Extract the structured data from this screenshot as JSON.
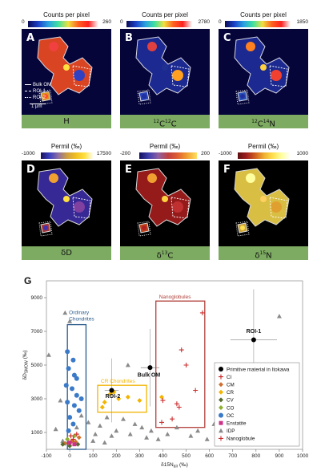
{
  "colors": {
    "panel_label_bg": "#7dab62",
    "heat_low": "#0a0a6e",
    "heat_high": "#ffe04a",
    "nanoglobule_box": "#b0403a",
    "ordinary_box": "#2a5a8a",
    "cr_box": "#f3b400"
  },
  "panels": [
    {
      "letter": "A",
      "label": "H",
      "cbar_title": "Counts per pixel",
      "min": "0",
      "max": "260",
      "scale_bar": "1 μm",
      "legend": [
        "Bulk OM",
        "ROI-1",
        "ROI-2"
      ]
    },
    {
      "letter": "B",
      "label": "12C12C",
      "label_sup": "12",
      "label_main": "C",
      "label_sup2": "12",
      "label_main2": "C",
      "cbar_title": "Counts per pixel",
      "min": "0",
      "max": "2780"
    },
    {
      "letter": "C",
      "label": "12C14N",
      "label_sup": "12",
      "label_main": "C",
      "label_sup2": "14",
      "label_main2": "N",
      "cbar_title": "Counts per pixel",
      "min": "0",
      "max": "1850"
    },
    {
      "letter": "D",
      "label": "δD",
      "cbar_title": "Permil (‰)",
      "min": "-1000",
      "max": "17500"
    },
    {
      "letter": "E",
      "label": "δ13C",
      "label_pre": "δ",
      "label_sup": "13",
      "label_main": "C",
      "cbar_title": "Permil (‰)",
      "min": "-200",
      "max": "200"
    },
    {
      "letter": "F",
      "label": "δ15N",
      "label_pre": "δ",
      "label_sup": "15",
      "label_main": "N",
      "cbar_title": "Permil (‰)",
      "min": "-1000",
      "max": "1000"
    }
  ],
  "chart_data": {
    "type": "scatter",
    "panel_letter": "G",
    "xlabel": "δ15N",
    "xlabel_sub": "air",
    "xlabel_unit": "(‰)",
    "ylabel": "δD",
    "ylabel_sub": "SMOW",
    "ylabel_unit": "(‰)",
    "xlim": [
      -100,
      1000
    ],
    "ylim": [
      0,
      10000
    ],
    "xticks": [
      "-100",
      "0",
      "100",
      "200",
      "300",
      "400",
      "500",
      "600",
      "700",
      "800",
      "900",
      "1000"
    ],
    "yticks": [
      "1000",
      "3000",
      "5000",
      "7000",
      "9000"
    ],
    "grid": false,
    "legend_position": "right",
    "boxes": [
      {
        "name": "Ordinary Chondrites",
        "x": [
          -10,
          70
        ],
        "y": [
          0,
          7400
        ],
        "color": "#2a5a8a"
      },
      {
        "name": "CR Chondrites",
        "x": [
          120,
          330
        ],
        "y": [
          2200,
          3800
        ],
        "color": "#f3b400"
      },
      {
        "name": "Nanoglobules",
        "x": [
          370,
          580
        ],
        "y": [
          1300,
          8800
        ],
        "color": "#b0403a"
      }
    ],
    "labels": [
      {
        "text": "ROI-1",
        "x": 790,
        "y": 6900
      },
      {
        "text": "ROI-2",
        "x": 185,
        "y": 3050
      },
      {
        "text": "Bulk OM",
        "x": 340,
        "y": 4300
      }
    ],
    "series": [
      {
        "name": "Primitive material in Itokawa",
        "marker": "circle",
        "color": "#000000",
        "points": [
          [
            790,
            6500
          ],
          [
            180,
            3500
          ],
          [
            345,
            4850
          ]
        ],
        "xerr": [
          100,
          30,
          40
        ],
        "yerr": [
          3000,
          1900,
          2300
        ]
      },
      {
        "name": "CI",
        "marker": "plus",
        "color": "#cc2020",
        "points": [
          [
            5,
            800
          ],
          [
            15,
            600
          ],
          [
            30,
            900
          ]
        ]
      },
      {
        "name": "CM",
        "marker": "diamond",
        "color": "#d07030",
        "points": [
          [
            -20,
            350
          ],
          [
            10,
            500
          ],
          [
            40,
            700
          ],
          [
            25,
            450
          ]
        ]
      },
      {
        "name": "CR",
        "marker": "diamond",
        "color": "#f3b400",
        "points": [
          [
            150,
            2800
          ],
          [
            175,
            3300
          ],
          [
            210,
            3000
          ],
          [
            250,
            3100
          ],
          [
            140,
            2500
          ],
          [
            300,
            2900
          ],
          [
            395,
            3100
          ],
          [
            190,
            3400
          ]
        ]
      },
      {
        "name": "CV",
        "marker": "diamond",
        "color": "#556b2f",
        "points": [
          [
            -30,
            300
          ],
          [
            0,
            200
          ],
          [
            35,
            300
          ]
        ]
      },
      {
        "name": "CO",
        "marker": "diamond",
        "color": "#8cb030",
        "points": [
          [
            -10,
            600
          ],
          [
            20,
            800
          ]
        ]
      },
      {
        "name": "OC",
        "marker": "circle",
        "color": "#3a7ac8",
        "points": [
          [
            -10,
            5800
          ],
          [
            15,
            5300
          ],
          [
            -5,
            4800
          ],
          [
            20,
            4400
          ],
          [
            -15,
            3800
          ],
          [
            10,
            3600
          ],
          [
            30,
            3200
          ],
          [
            -10,
            2800
          ],
          [
            20,
            2600
          ],
          [
            40,
            2300
          ],
          [
            0,
            1900
          ],
          [
            15,
            1500
          ],
          [
            -5,
            1100
          ],
          [
            30,
            4200
          ],
          [
            50,
            3000
          ]
        ]
      },
      {
        "name": "Enstatite",
        "marker": "square",
        "color": "#cc3388",
        "points": [
          [
            0,
            400
          ],
          [
            20,
            300
          ]
        ]
      },
      {
        "name": "IDP",
        "marker": "triangle",
        "color": "#8a8a8a",
        "points": [
          [
            -90,
            5600
          ],
          [
            -20,
            8100
          ],
          [
            -40,
            2900
          ],
          [
            -60,
            1200
          ],
          [
            0,
            7600
          ],
          [
            50,
            2000
          ],
          [
            80,
            1600
          ],
          [
            110,
            900
          ],
          [
            130,
            1400
          ],
          [
            160,
            1900
          ],
          [
            180,
            800
          ],
          [
            200,
            1100
          ],
          [
            230,
            1800
          ],
          [
            260,
            900
          ],
          [
            280,
            1500
          ],
          [
            310,
            1300
          ],
          [
            330,
            700
          ],
          [
            350,
            1100
          ],
          [
            380,
            600
          ],
          [
            420,
            900
          ],
          [
            460,
            1300
          ],
          [
            520,
            800
          ],
          [
            550,
            1100
          ],
          [
            590,
            600
          ],
          [
            620,
            1500
          ],
          [
            660,
            1000
          ],
          [
            700,
            1300
          ],
          [
            760,
            900
          ],
          [
            800,
            1200
          ],
          [
            900,
            7900
          ],
          [
            250,
            5000
          ],
          [
            30,
            1300
          ],
          [
            -30,
            500
          ],
          [
            100,
            500
          ],
          [
            150,
            400
          ]
        ]
      },
      {
        "name": "Nanoglobule",
        "marker": "plus",
        "color": "#cc3030",
        "points": [
          [
            570,
            8100
          ],
          [
            480,
            5900
          ],
          [
            500,
            5000
          ],
          [
            540,
            3500
          ],
          [
            460,
            2700
          ],
          [
            470,
            2500
          ],
          [
            440,
            1800
          ],
          [
            395,
            1600
          ],
          [
            400,
            2900
          ]
        ]
      }
    ]
  }
}
